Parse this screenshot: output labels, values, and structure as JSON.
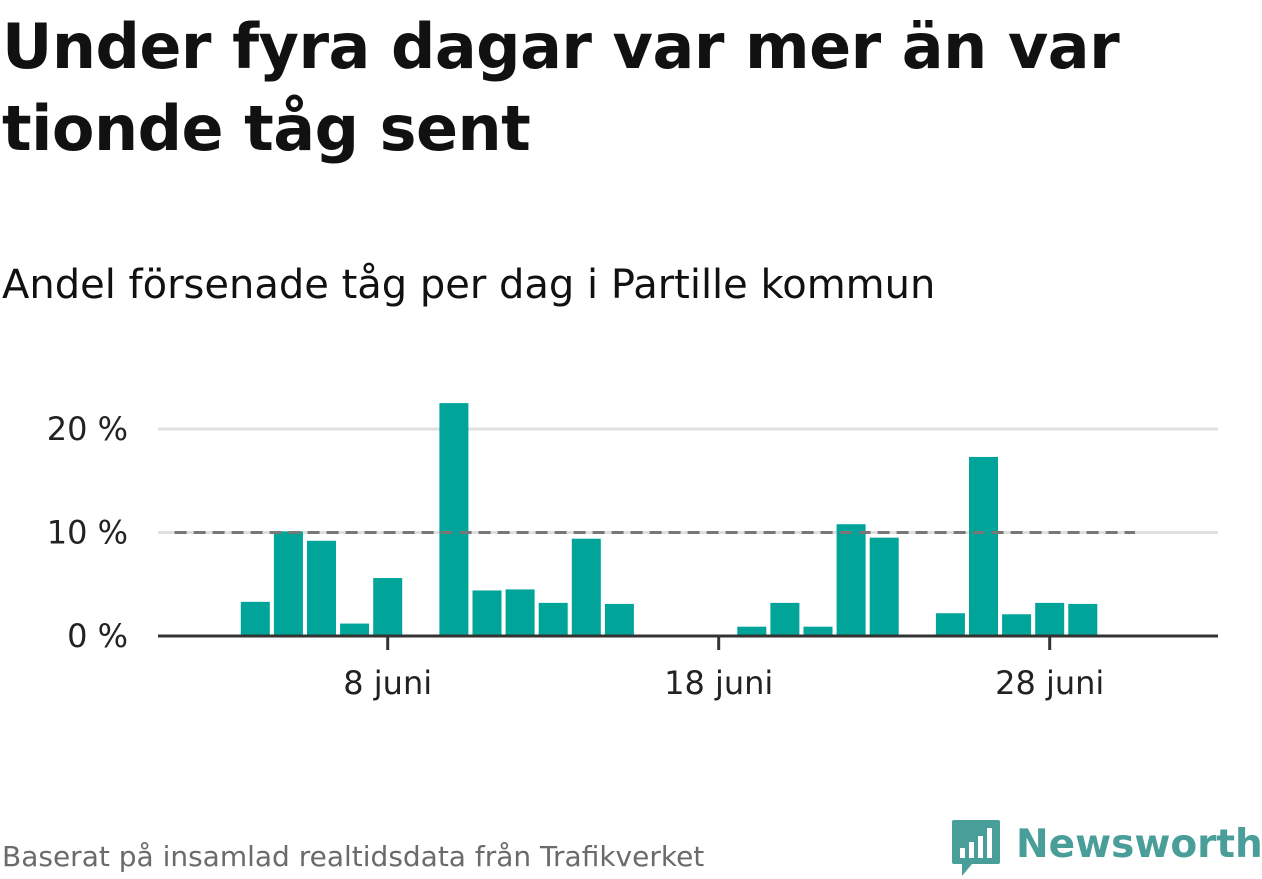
{
  "header": {
    "title": "Under fyra dagar var mer än var tionde tåg sent",
    "subtitle": "Andel försenade tåg per dag i Partille kommun"
  },
  "footer": {
    "source": "Baserat på insamlad realtidsdata från Trafikverket",
    "brand": "Newsworthy"
  },
  "colors": {
    "bar": "#00a499",
    "reference_line": "#777777",
    "grid": "#e0e0e0",
    "axis": "#333333",
    "brand": "#4a9e99"
  },
  "chart_data": {
    "type": "bar",
    "title": "Andel försenade tåg per dag i Partille kommun",
    "xlabel": "",
    "ylabel": "",
    "x_day_range": [
      1,
      30
    ],
    "x_ticks": [
      {
        "day": 8,
        "label": "8 juni"
      },
      {
        "day": 18,
        "label": "18 juni"
      },
      {
        "day": 28,
        "label": "28 juni"
      }
    ],
    "y_ticks": [
      {
        "value": 0,
        "label": "0 %"
      },
      {
        "value": 10,
        "label": "10 %"
      },
      {
        "value": 20,
        "label": "20 %"
      }
    ],
    "ylim": [
      0,
      23
    ],
    "grid": true,
    "reference_line": {
      "value": 10,
      "from_day": 2,
      "to_day": 31,
      "style": "dashed"
    },
    "days": [
      4,
      5,
      6,
      7,
      8,
      10,
      11,
      12,
      13,
      14,
      15,
      19,
      20,
      21,
      22,
      23,
      25,
      26,
      27,
      28,
      29
    ],
    "values": [
      3.3,
      10.1,
      9.2,
      1.2,
      5.6,
      22.5,
      4.4,
      4.5,
      3.2,
      9.4,
      3.1,
      0.9,
      3.2,
      0.9,
      10.8,
      9.5,
      2.2,
      17.3,
      2.1,
      3.2,
      3.1
    ]
  }
}
